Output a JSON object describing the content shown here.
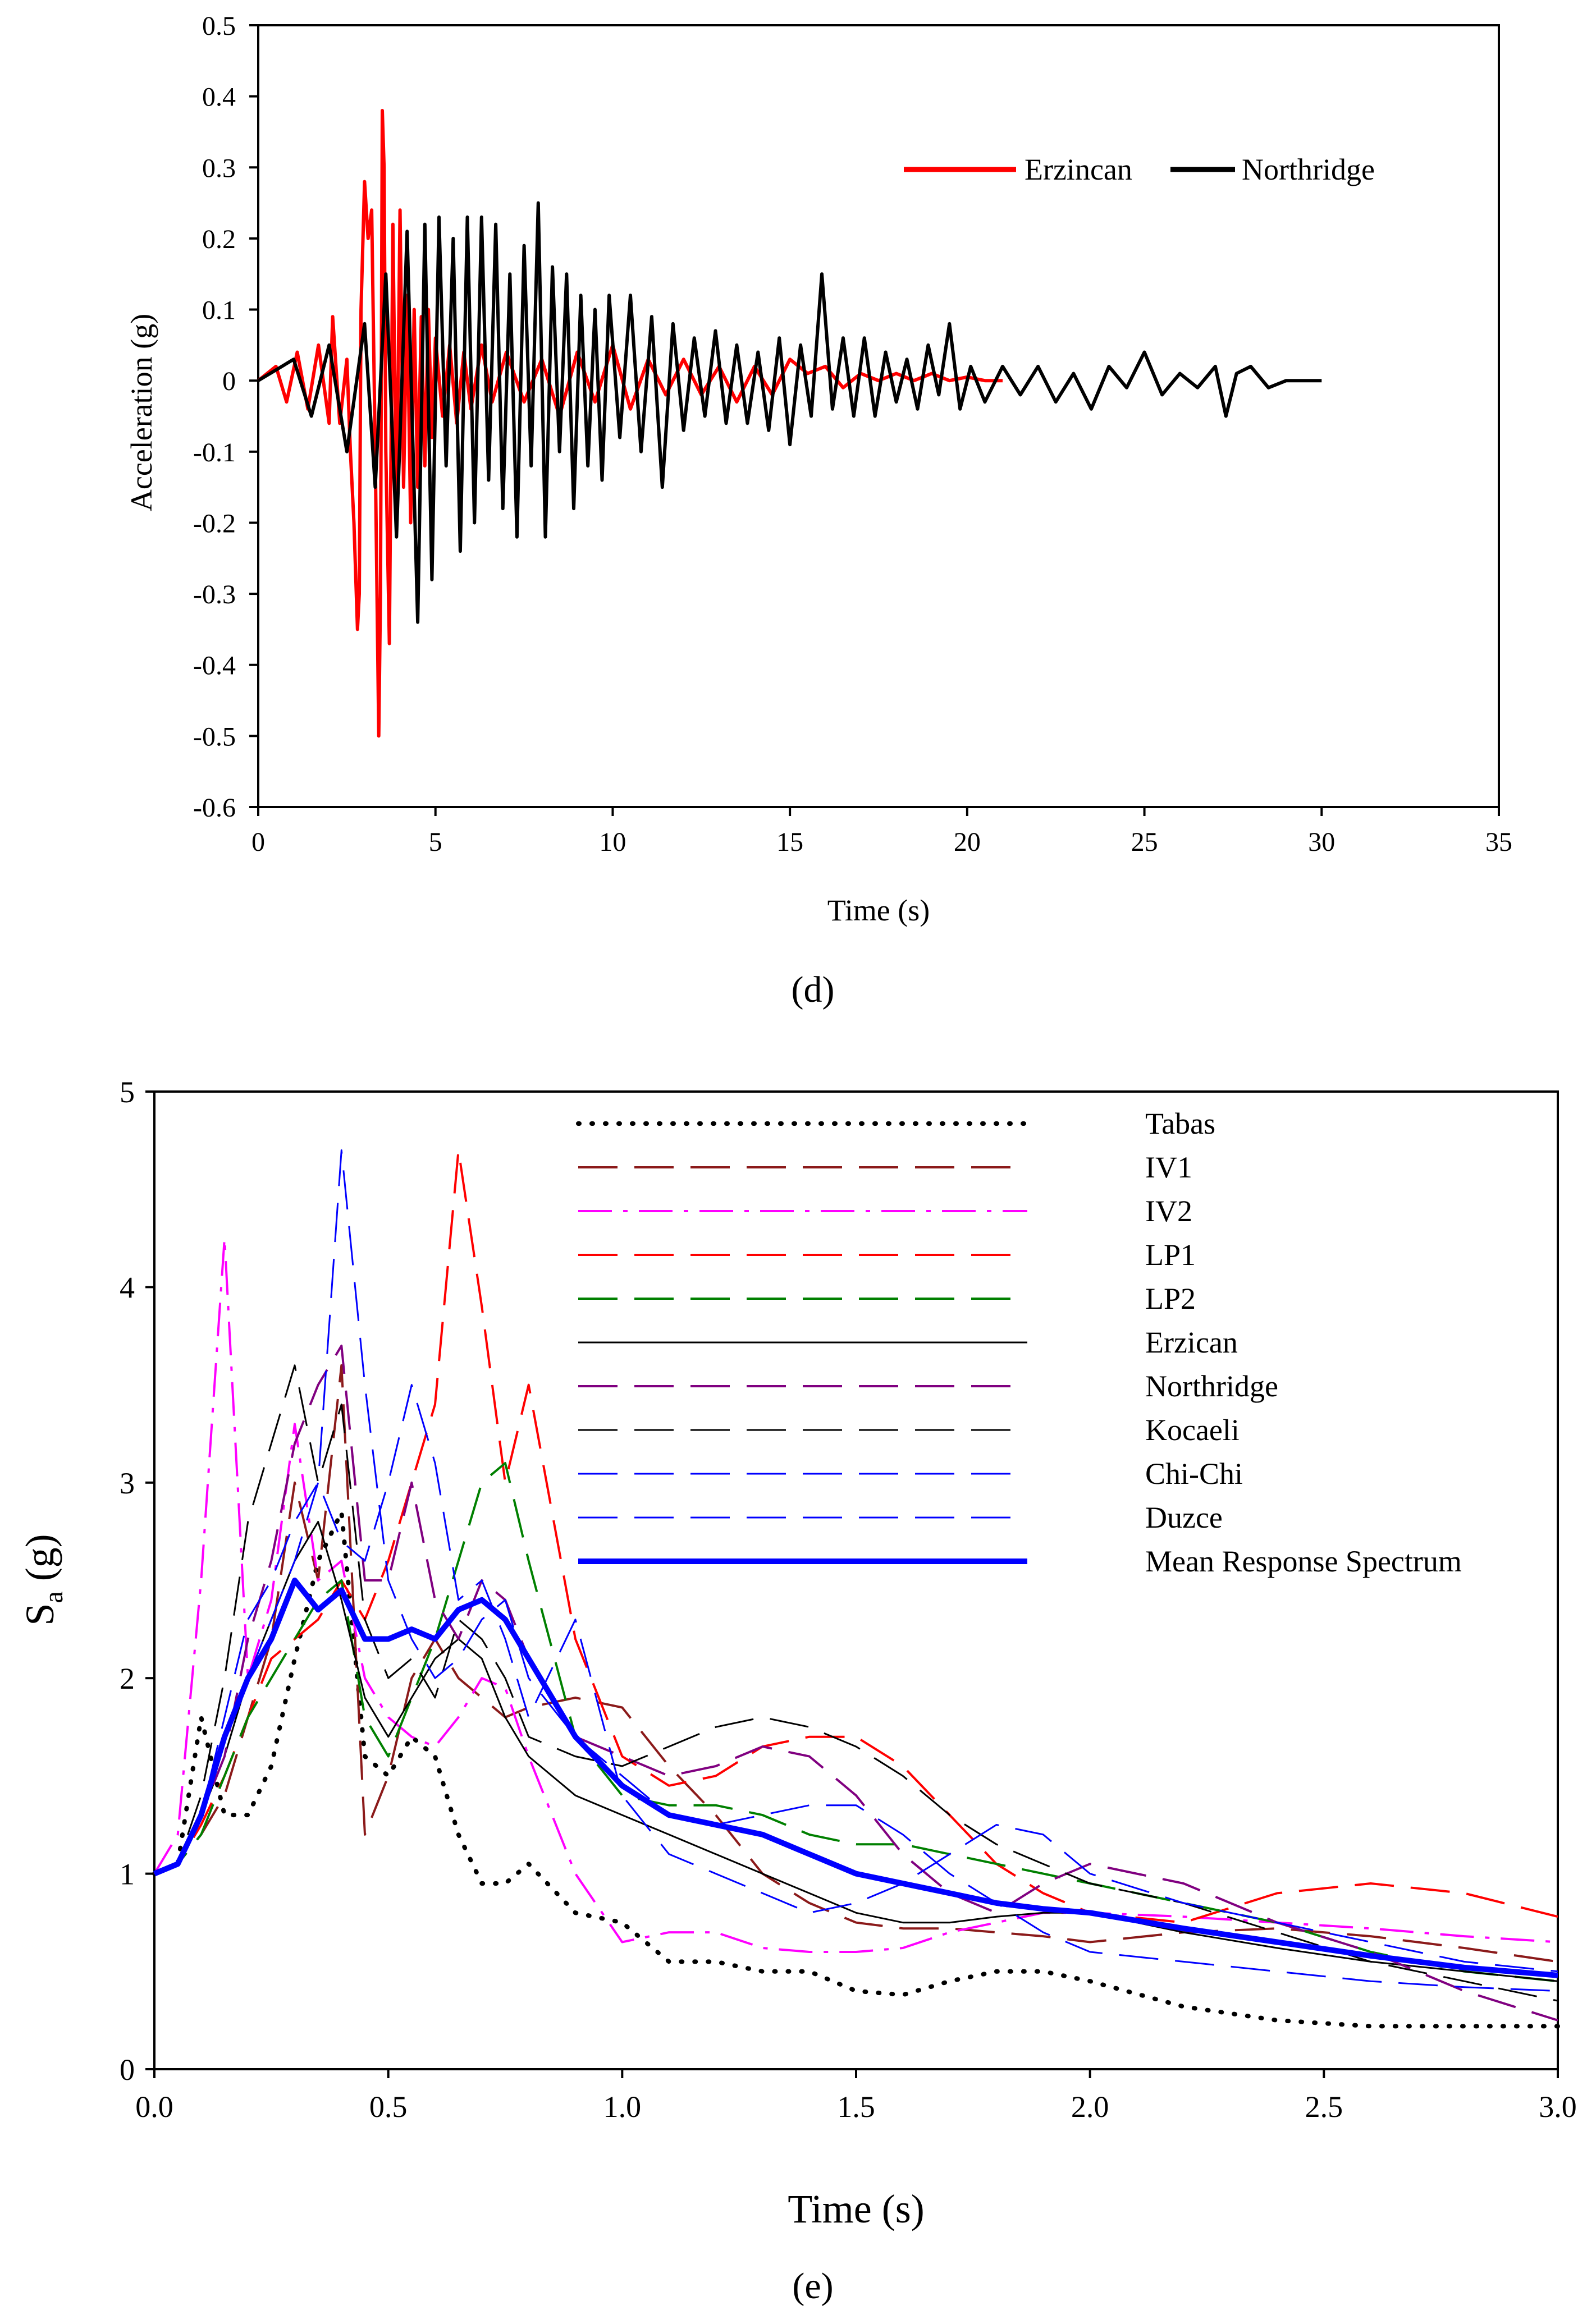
{
  "chart_data": [
    {
      "type": "line",
      "panel_label": "(d)",
      "xlabel": "Time (s)",
      "ylabel": "Acceleration (g)",
      "xlim": [
        0,
        35
      ],
      "ylim": [
        -0.6,
        0.5
      ],
      "x_ticks": [
        "0",
        "5",
        "10",
        "15",
        "20",
        "25",
        "30",
        "35"
      ],
      "y_ticks": [
        "0.5",
        "0.4",
        "0.3",
        "0.2",
        "0.1",
        "0",
        "-0.1",
        "-0.2",
        "-0.3",
        "-0.4",
        "-0.5",
        "-0.6"
      ],
      "legend_placement": "top-right",
      "grid": false,
      "series": [
        {
          "name": "Erzincan",
          "color": "#ff0000",
          "x": [
            0,
            0.5,
            0.8,
            1.1,
            1.4,
            1.7,
            2.0,
            2.1,
            2.3,
            2.5,
            2.6,
            2.7,
            2.8,
            2.85,
            2.9,
            3.0,
            3.1,
            3.2,
            3.3,
            3.4,
            3.45,
            3.5,
            3.55,
            3.6,
            3.7,
            3.8,
            3.9,
            4.0,
            4.1,
            4.2,
            4.3,
            4.4,
            4.5,
            4.6,
            4.7,
            4.8,
            4.9,
            5.0,
            5.2,
            5.4,
            5.6,
            5.8,
            6.0,
            6.3,
            6.6,
            7.0,
            7.5,
            8.0,
            8.5,
            9.0,
            9.5,
            10.0,
            10.5,
            11.0,
            11.5,
            12.0,
            12.5,
            13.0,
            13.5,
            14.0,
            14.5,
            15.0,
            15.5,
            16.0,
            16.5,
            17.0,
            17.5,
            18.0,
            18.5,
            19.0,
            19.5,
            20.0,
            20.5,
            21.0
          ],
          "y": [
            0.0,
            0.02,
            -0.03,
            0.04,
            -0.04,
            0.05,
            -0.06,
            0.09,
            -0.06,
            0.03,
            -0.1,
            -0.2,
            -0.35,
            -0.3,
            0.1,
            0.28,
            0.2,
            0.24,
            -0.1,
            -0.5,
            -0.3,
            0.38,
            0.3,
            -0.1,
            -0.37,
            0.22,
            -0.2,
            0.24,
            -0.15,
            0.12,
            -0.2,
            0.1,
            -0.15,
            0.09,
            -0.12,
            0.1,
            -0.08,
            0.06,
            -0.05,
            0.05,
            -0.06,
            0.04,
            -0.04,
            0.05,
            -0.03,
            0.04,
            -0.03,
            0.03,
            -0.05,
            0.04,
            -0.03,
            0.05,
            -0.04,
            0.03,
            -0.02,
            0.03,
            -0.02,
            0.02,
            -0.03,
            0.02,
            -0.02,
            0.03,
            0.01,
            0.02,
            -0.01,
            0.01,
            0.0,
            0.01,
            0.0,
            0.01,
            0.0,
            0.005,
            0.0,
            0.0
          ]
        },
        {
          "name": "Northridge",
          "color": "#000000",
          "x": [
            0,
            1.0,
            1.5,
            2.0,
            2.5,
            3.0,
            3.3,
            3.6,
            3.9,
            4.2,
            4.5,
            4.7,
            4.9,
            5.1,
            5.3,
            5.5,
            5.7,
            5.9,
            6.1,
            6.3,
            6.5,
            6.7,
            6.9,
            7.1,
            7.3,
            7.5,
            7.7,
            7.9,
            8.1,
            8.3,
            8.5,
            8.7,
            8.9,
            9.1,
            9.3,
            9.5,
            9.7,
            9.9,
            10.2,
            10.5,
            10.8,
            11.1,
            11.4,
            11.7,
            12.0,
            12.3,
            12.6,
            12.9,
            13.2,
            13.5,
            13.8,
            14.1,
            14.4,
            14.7,
            15.0,
            15.3,
            15.6,
            15.9,
            16.2,
            16.5,
            16.8,
            17.1,
            17.4,
            17.7,
            18.0,
            18.3,
            18.6,
            18.9,
            19.2,
            19.5,
            19.8,
            20.1,
            20.5,
            21.0,
            21.5,
            22.0,
            22.5,
            23.0,
            23.5,
            24.0,
            24.5,
            25.0,
            25.5,
            26.0,
            26.5,
            27.0,
            27.3,
            27.6,
            28.0,
            28.5,
            29.0,
            29.5,
            30.0
          ],
          "y": [
            0.0,
            0.03,
            -0.05,
            0.05,
            -0.1,
            0.08,
            -0.15,
            0.15,
            -0.22,
            0.21,
            -0.34,
            0.22,
            -0.28,
            0.23,
            -0.12,
            0.2,
            -0.24,
            0.23,
            -0.2,
            0.23,
            -0.14,
            0.22,
            -0.18,
            0.15,
            -0.22,
            0.19,
            -0.12,
            0.25,
            -0.22,
            0.16,
            -0.1,
            0.15,
            -0.18,
            0.12,
            -0.12,
            0.1,
            -0.14,
            0.12,
            -0.08,
            0.12,
            -0.1,
            0.09,
            -0.15,
            0.08,
            -0.07,
            0.06,
            -0.05,
            0.07,
            -0.06,
            0.05,
            -0.06,
            0.04,
            -0.07,
            0.06,
            -0.09,
            0.05,
            -0.05,
            0.15,
            -0.04,
            0.06,
            -0.05,
            0.06,
            -0.05,
            0.04,
            -0.03,
            0.03,
            -0.04,
            0.05,
            -0.02,
            0.08,
            -0.04,
            0.02,
            -0.03,
            0.02,
            -0.02,
            0.02,
            -0.03,
            0.01,
            -0.04,
            0.02,
            -0.01,
            0.04,
            -0.02,
            0.01,
            -0.01,
            0.02,
            -0.05,
            0.01,
            0.02,
            -0.01,
            0.0,
            0.0,
            0.0
          ]
        }
      ]
    },
    {
      "type": "line",
      "panel_label": "(e)",
      "xlabel": "Time (s)",
      "ylabel_main": "S",
      "ylabel_sub": "a",
      "ylabel_rest": " (g)",
      "xlim": [
        0,
        3.0
      ],
      "ylim": [
        0,
        5
      ],
      "x_ticks": [
        "0.0",
        "0.5",
        "1.0",
        "1.5",
        "2.0",
        "2.5",
        "3.0"
      ],
      "y_ticks": [
        "5",
        "4",
        "3",
        "2",
        "1",
        "0"
      ],
      "legend_placement": "top-right",
      "grid": false,
      "x": [
        0,
        0.05,
        0.1,
        0.15,
        0.2,
        0.25,
        0.3,
        0.35,
        0.4,
        0.45,
        0.5,
        0.55,
        0.6,
        0.65,
        0.7,
        0.75,
        0.8,
        0.9,
        1.0,
        1.1,
        1.2,
        1.3,
        1.4,
        1.5,
        1.6,
        1.7,
        1.8,
        1.9,
        2.0,
        2.2,
        2.4,
        2.6,
        2.8,
        3.0
      ],
      "series": [
        {
          "name": "Tabas",
          "color": "#000000",
          "dash": "dotted",
          "width": 8,
          "values": [
            1.0,
            1.05,
            1.8,
            1.3,
            1.3,
            1.55,
            2.1,
            2.6,
            2.85,
            1.6,
            1.5,
            1.7,
            1.6,
            1.2,
            0.95,
            0.95,
            1.05,
            0.8,
            0.75,
            0.55,
            0.55,
            0.5,
            0.5,
            0.4,
            0.38,
            0.45,
            0.5,
            0.5,
            0.45,
            0.32,
            0.25,
            0.22,
            0.22,
            0.22
          ]
        },
        {
          "name": "IV1",
          "color": "#8b1a1a",
          "dash": "longdash",
          "width": 4,
          "values": [
            1.0,
            1.05,
            1.2,
            1.4,
            1.8,
            2.2,
            3.0,
            2.5,
            3.6,
            1.2,
            1.5,
            2.0,
            2.2,
            2.0,
            1.9,
            1.8,
            1.85,
            1.9,
            1.85,
            1.55,
            1.3,
            1.0,
            0.85,
            0.75,
            0.72,
            0.72,
            0.7,
            0.68,
            0.65,
            0.7,
            0.72,
            0.68,
            0.62,
            0.55
          ]
        },
        {
          "name": "IV2",
          "color": "#ff00ff",
          "dash": "dashdot",
          "width": 4,
          "values": [
            1.0,
            1.2,
            2.5,
            4.25,
            2.0,
            2.4,
            3.3,
            2.5,
            2.6,
            2.0,
            1.8,
            1.7,
            1.65,
            1.8,
            2.0,
            1.95,
            1.6,
            1.0,
            0.65,
            0.7,
            0.7,
            0.62,
            0.6,
            0.6,
            0.62,
            0.7,
            0.75,
            0.8,
            0.8,
            0.78,
            0.75,
            0.72,
            0.68,
            0.65
          ]
        },
        {
          "name": "LP1",
          "color": "#ff0000",
          "dash": "longdash",
          "width": 4,
          "values": [
            1.0,
            1.05,
            1.25,
            1.5,
            1.8,
            2.1,
            2.2,
            2.3,
            2.5,
            2.3,
            2.6,
            3.0,
            3.4,
            4.7,
            3.9,
            3.0,
            3.5,
            2.2,
            1.6,
            1.45,
            1.5,
            1.65,
            1.7,
            1.7,
            1.55,
            1.3,
            1.05,
            0.9,
            0.8,
            0.75,
            0.9,
            0.95,
            0.9,
            0.78
          ]
        },
        {
          "name": "LP2",
          "color": "#008000",
          "dash": "longdash",
          "width": 4,
          "values": [
            1.0,
            1.05,
            1.2,
            1.5,
            1.8,
            2.0,
            2.2,
            2.4,
            2.5,
            1.8,
            1.6,
            1.9,
            2.2,
            2.6,
            3.0,
            3.1,
            2.6,
            1.7,
            1.4,
            1.35,
            1.35,
            1.3,
            1.2,
            1.15,
            1.15,
            1.1,
            1.05,
            1.0,
            0.95,
            0.85,
            0.75,
            0.6,
            0.5,
            0.45
          ]
        },
        {
          "name": "Erzican",
          "color": "#000000",
          "dash": "solid",
          "width": 3,
          "values": [
            1.0,
            1.05,
            1.3,
            1.6,
            2.0,
            2.3,
            2.6,
            2.8,
            2.4,
            1.9,
            1.7,
            1.9,
            2.1,
            2.2,
            2.1,
            1.8,
            1.6,
            1.4,
            1.3,
            1.2,
            1.1,
            1.0,
            0.9,
            0.8,
            0.75,
            0.75,
            0.78,
            0.8,
            0.8,
            0.7,
            0.62,
            0.55,
            0.5,
            0.45
          ]
        },
        {
          "name": "Northridge",
          "color": "#800080",
          "dash": "longdash",
          "width": 4,
          "values": [
            1.0,
            1.05,
            1.3,
            1.6,
            2.2,
            2.6,
            3.2,
            3.5,
            3.7,
            2.5,
            2.5,
            3.0,
            2.4,
            2.2,
            2.5,
            2.4,
            2.1,
            1.7,
            1.6,
            1.5,
            1.55,
            1.65,
            1.6,
            1.4,
            1.1,
            0.9,
            0.8,
            0.95,
            1.05,
            0.95,
            0.75,
            0.6,
            0.4,
            0.25
          ]
        },
        {
          "name": "Kocaeli",
          "color": "#000000",
          "dash": "longdash",
          "width": 3,
          "values": [
            1.0,
            1.05,
            1.4,
            2.0,
            2.8,
            3.2,
            3.6,
            3.0,
            3.4,
            2.3,
            2.0,
            2.1,
            1.9,
            2.3,
            2.2,
            2.0,
            1.7,
            1.6,
            1.55,
            1.65,
            1.75,
            1.8,
            1.75,
            1.65,
            1.5,
            1.3,
            1.15,
            1.05,
            0.95,
            0.85,
            0.7,
            0.55,
            0.45,
            0.35
          ]
        },
        {
          "name": "Chi-Chi",
          "color": "#0000ff",
          "dash": "longdash",
          "width": 3,
          "values": [
            1.0,
            1.05,
            1.3,
            1.8,
            2.3,
            2.5,
            2.8,
            3.0,
            2.7,
            2.6,
            3.0,
            3.5,
            3.1,
            2.4,
            2.5,
            2.2,
            1.8,
            2.3,
            1.4,
            1.1,
            1.0,
            0.9,
            0.8,
            0.85,
            0.95,
            1.1,
            1.25,
            1.2,
            1.0,
            0.85,
            0.75,
            0.65,
            0.55,
            0.5
          ]
        },
        {
          "name": "Duzce",
          "color": "#0000ff",
          "dash": "longdash",
          "width": 3,
          "values": [
            1.0,
            1.05,
            1.3,
            1.7,
            2.0,
            2.3,
            2.6,
            3.0,
            4.7,
            3.5,
            2.5,
            2.2,
            2.0,
            2.1,
            2.3,
            2.4,
            2.0,
            1.7,
            1.5,
            1.3,
            1.25,
            1.3,
            1.35,
            1.35,
            1.2,
            1.0,
            0.85,
            0.7,
            0.6,
            0.55,
            0.5,
            0.45,
            0.42,
            0.4
          ]
        },
        {
          "name": "Mean Response Spectrum",
          "color": "#0000ff",
          "dash": "solid",
          "width": 10,
          "values": [
            1.0,
            1.05,
            1.3,
            1.7,
            2.0,
            2.2,
            2.5,
            2.35,
            2.45,
            2.2,
            2.2,
            2.25,
            2.2,
            2.35,
            2.4,
            2.3,
            2.1,
            1.7,
            1.45,
            1.3,
            1.25,
            1.2,
            1.1,
            1.0,
            0.95,
            0.9,
            0.85,
            0.82,
            0.8,
            0.72,
            0.65,
            0.58,
            0.52,
            0.48
          ]
        }
      ]
    }
  ]
}
